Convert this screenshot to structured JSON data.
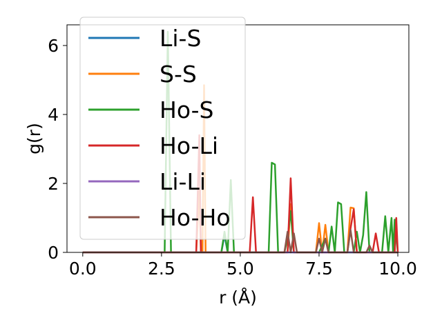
{
  "chart_data": {
    "type": "line",
    "title": "",
    "xlabel": "r (Å)",
    "ylabel": "g(r)",
    "xlim": [
      -0.5,
      10.35
    ],
    "ylim": [
      0,
      6.6
    ],
    "xticks": [
      0.0,
      2.5,
      5.0,
      7.5,
      10.0
    ],
    "xtick_labels": [
      "0.0",
      "2.5",
      "5.0",
      "7.5",
      "10.0"
    ],
    "yticks": [
      0,
      2,
      4,
      6
    ],
    "ytick_labels": [
      "0",
      "2",
      "4",
      "6"
    ],
    "grid": false,
    "legend_position": "upper-left",
    "series": [
      {
        "name": "Li-S",
        "color": "#1f77b4",
        "points": [
          [
            0,
            0
          ],
          [
            4.4,
            0
          ],
          [
            4.5,
            0.5
          ],
          [
            4.6,
            0
          ],
          [
            10,
            0
          ]
        ]
      },
      {
        "name": "S-S",
        "color": "#ff7f0e",
        "points": [
          [
            0,
            0
          ],
          [
            3.6,
            0
          ],
          [
            3.7,
            1.8
          ],
          [
            3.75,
            0
          ],
          [
            3.8,
            0
          ],
          [
            3.85,
            4.85
          ],
          [
            3.9,
            0
          ],
          [
            6.5,
            0
          ],
          [
            6.6,
            1.4
          ],
          [
            6.7,
            0
          ],
          [
            7.4,
            0
          ],
          [
            7.5,
            0.85
          ],
          [
            7.6,
            0
          ],
          [
            7.7,
            0.8
          ],
          [
            7.8,
            0
          ],
          [
            8.4,
            0
          ],
          [
            8.5,
            1.3
          ],
          [
            8.6,
            1.28
          ],
          [
            8.7,
            0
          ],
          [
            10,
            0
          ]
        ]
      },
      {
        "name": "Ho-S",
        "color": "#2ca02c",
        "points": [
          [
            0,
            0
          ],
          [
            2.6,
            0
          ],
          [
            2.7,
            6.4
          ],
          [
            2.8,
            0
          ],
          [
            4.4,
            0
          ],
          [
            4.5,
            0.6
          ],
          [
            4.6,
            0
          ],
          [
            4.7,
            2.1
          ],
          [
            4.8,
            0
          ],
          [
            5.9,
            0
          ],
          [
            6.0,
            2.6
          ],
          [
            6.1,
            2.55
          ],
          [
            6.2,
            0
          ],
          [
            6.4,
            0
          ],
          [
            6.5,
            0.4
          ],
          [
            6.6,
            1.2
          ],
          [
            6.7,
            0
          ],
          [
            7.5,
            0
          ],
          [
            7.7,
            0.4
          ],
          [
            7.8,
            0
          ],
          [
            7.9,
            0.75
          ],
          [
            8.0,
            0
          ],
          [
            8.1,
            1.45
          ],
          [
            8.2,
            1.4
          ],
          [
            8.3,
            0
          ],
          [
            8.6,
            0
          ],
          [
            8.7,
            0.6
          ],
          [
            8.8,
            0
          ],
          [
            8.9,
            0.5
          ],
          [
            9.0,
            1.75
          ],
          [
            9.1,
            0
          ],
          [
            9.5,
            0
          ],
          [
            9.6,
            1.05
          ],
          [
            9.7,
            0
          ],
          [
            9.8,
            1.0
          ],
          [
            9.85,
            0
          ],
          [
            9.9,
            0.95
          ],
          [
            10,
            0
          ]
        ]
      },
      {
        "name": "Ho-Li",
        "color": "#d62728",
        "points": [
          [
            0,
            0
          ],
          [
            3.6,
            0
          ],
          [
            3.7,
            3.4
          ],
          [
            3.75,
            0
          ],
          [
            5.3,
            0
          ],
          [
            5.4,
            1.6
          ],
          [
            5.5,
            0
          ],
          [
            6.5,
            0
          ],
          [
            6.6,
            2.15
          ],
          [
            6.7,
            0
          ],
          [
            8.4,
            0
          ],
          [
            8.5,
            0.7
          ],
          [
            8.6,
            1.25
          ],
          [
            8.7,
            0
          ],
          [
            9.2,
            0
          ],
          [
            9.3,
            0.55
          ],
          [
            9.4,
            0
          ],
          [
            9.9,
            0
          ],
          [
            9.95,
            1.0
          ],
          [
            10,
            0
          ]
        ]
      },
      {
        "name": "Li-Li",
        "color": "#9467bd",
        "points": [
          [
            0,
            0
          ],
          [
            10,
            0
          ]
        ]
      },
      {
        "name": "Ho-Ho",
        "color": "#8c564b",
        "points": [
          [
            0,
            0
          ],
          [
            6.4,
            0
          ],
          [
            6.5,
            0.6
          ],
          [
            6.6,
            0
          ],
          [
            6.7,
            0.55
          ],
          [
            6.8,
            0
          ],
          [
            7.4,
            0
          ],
          [
            7.5,
            0.4
          ],
          [
            7.6,
            0
          ],
          [
            7.7,
            0.4
          ],
          [
            7.8,
            0
          ],
          [
            8.4,
            0
          ],
          [
            8.5,
            0.65
          ],
          [
            8.6,
            0
          ],
          [
            9.0,
            0
          ],
          [
            9.1,
            0.2
          ],
          [
            9.2,
            0
          ],
          [
            10,
            0
          ]
        ]
      }
    ]
  }
}
